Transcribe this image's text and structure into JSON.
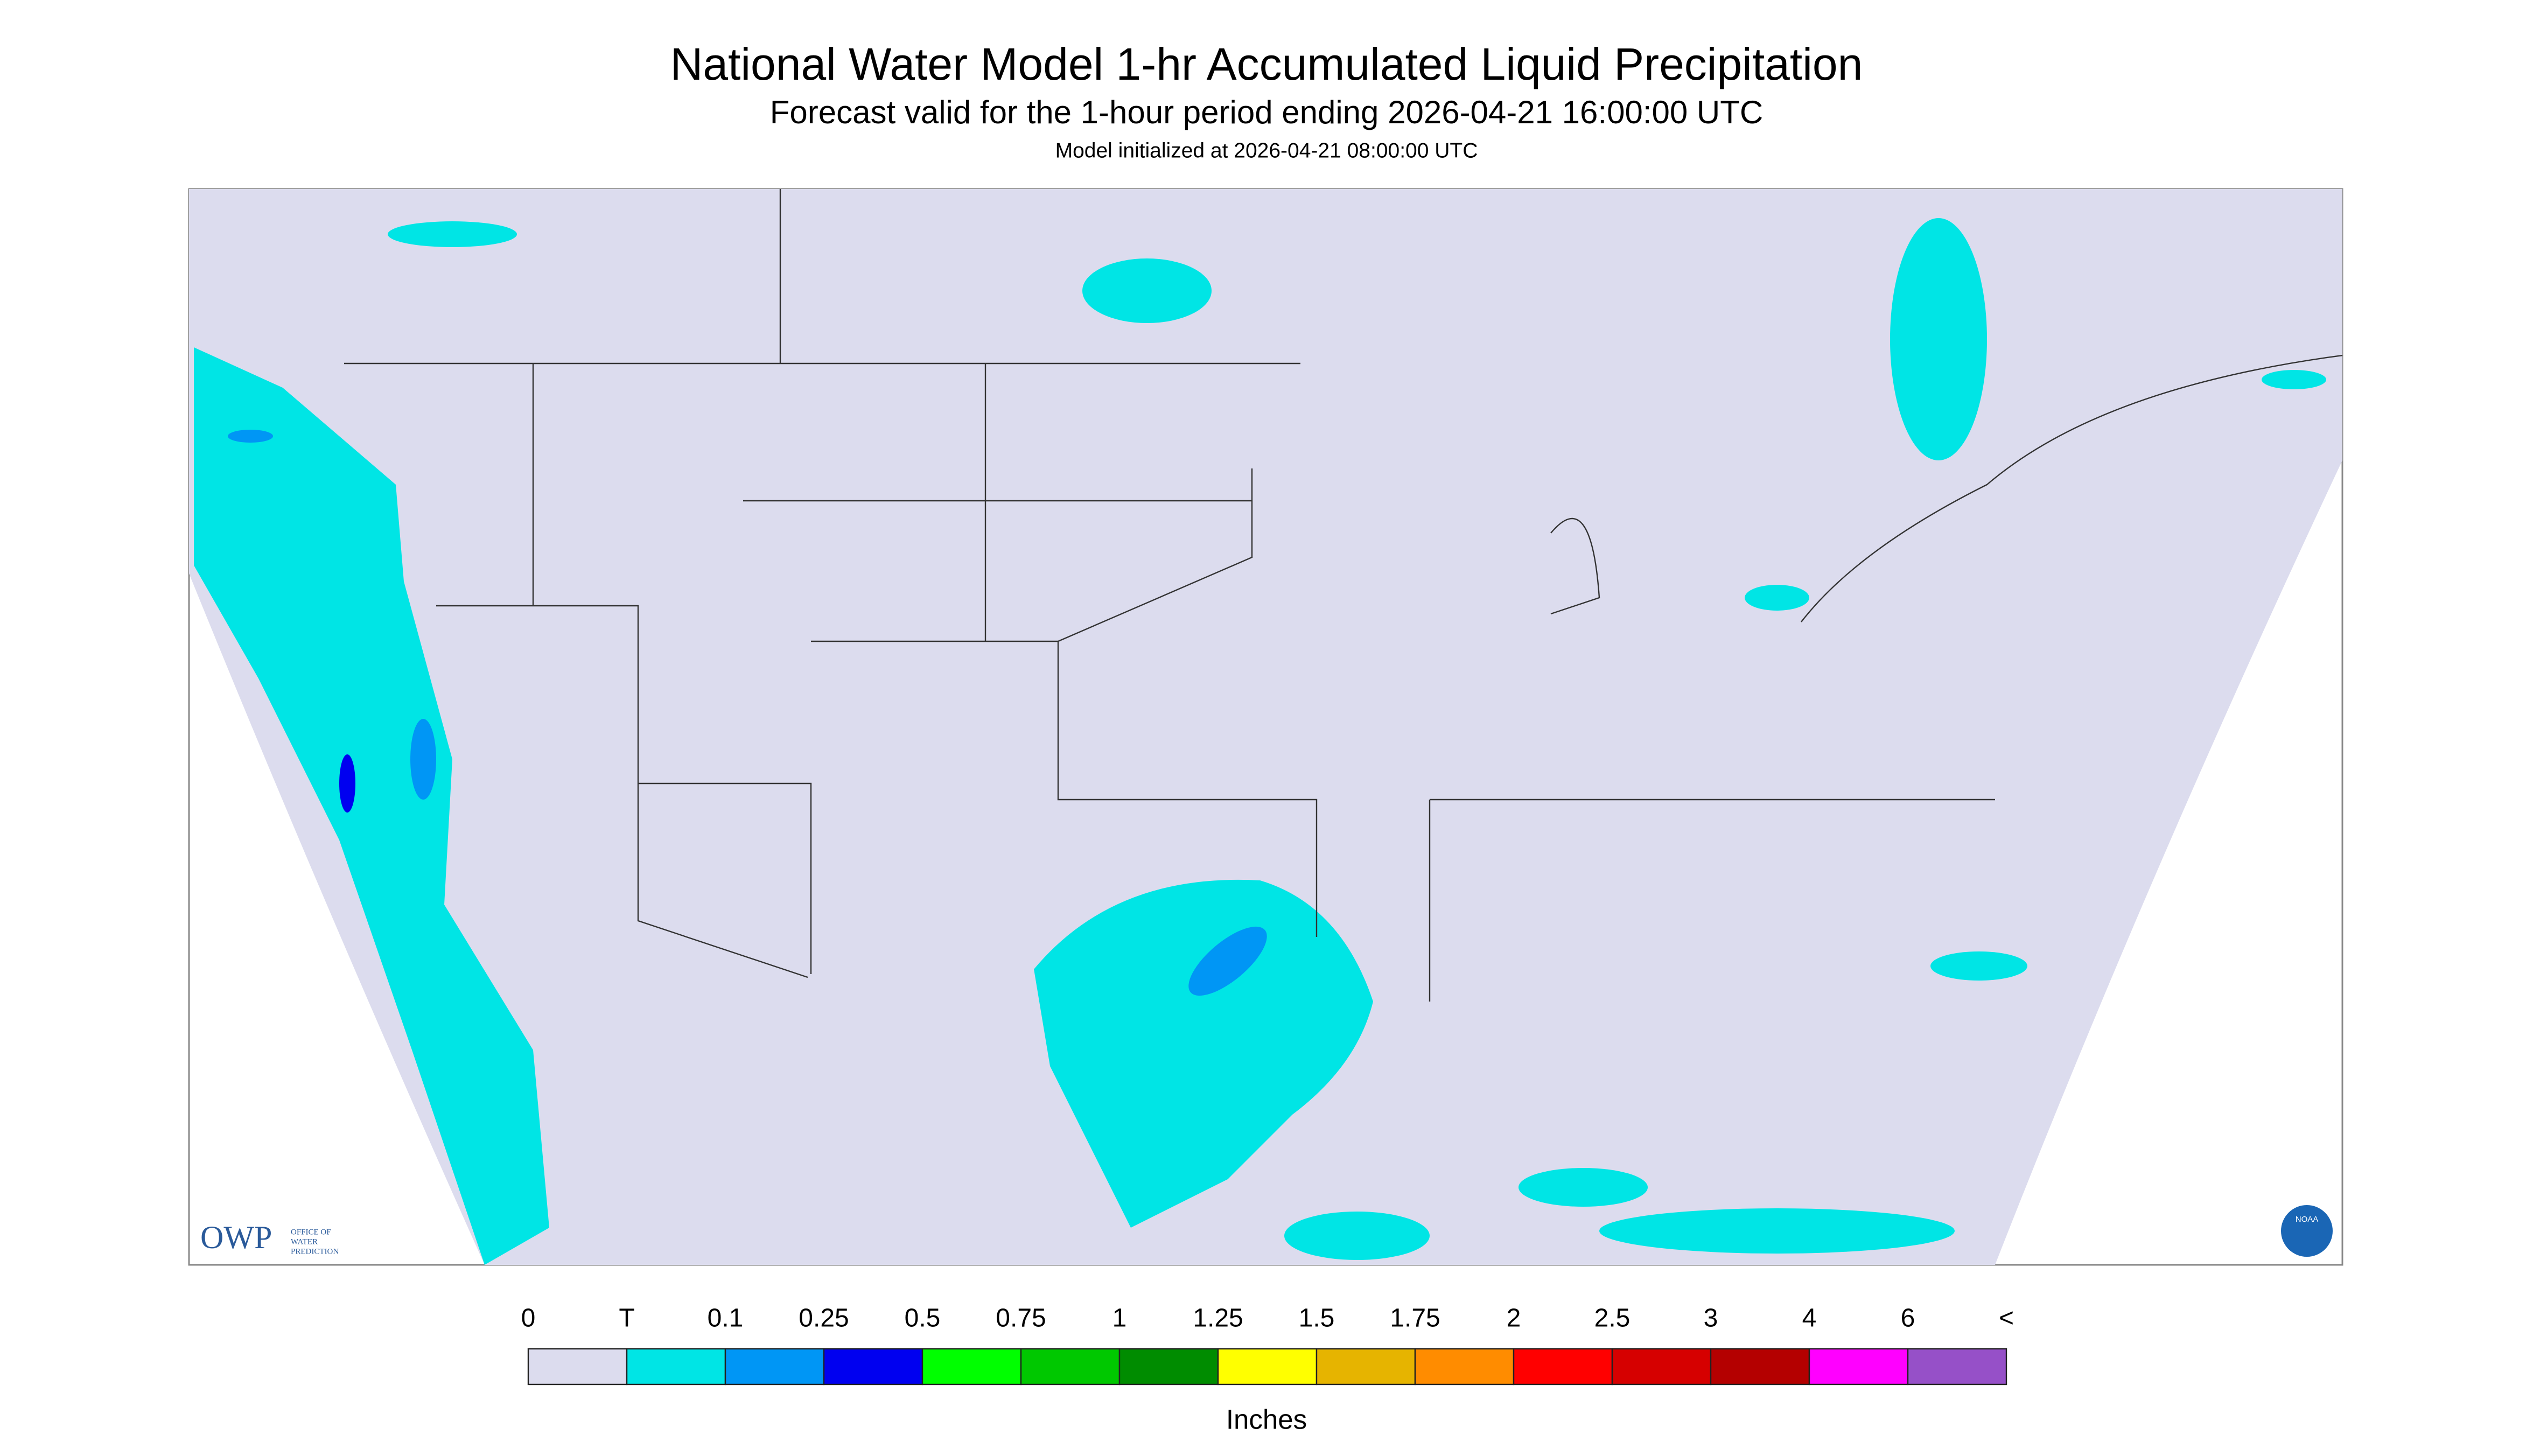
{
  "header": {
    "title": "National Water Model 1-hr Accumulated Liquid Precipitation",
    "subtitle": "Forecast valid for the 1-hour period ending 2026-04-21 16:00:00 UTC",
    "note": "Model initialized at 2026-04-21 08:00:00 UTC"
  },
  "legend": {
    "labels": [
      "0",
      "T",
      "0.1",
      "0.25",
      "0.5",
      "0.75",
      "1",
      "1.25",
      "1.5",
      "1.75",
      "2",
      "2.5",
      "3",
      "4",
      "6",
      "<"
    ],
    "colors": [
      "#dcdcee",
      "#00e5e5",
      "#0096f5",
      "#0000f0",
      "#00ff00",
      "#00c800",
      "#008c00",
      "#ffff00",
      "#e6b400",
      "#ff8c00",
      "#ff0000",
      "#d60000",
      "#b40000",
      "#ff00ff",
      "#9650c8"
    ],
    "unit": "Inches"
  },
  "logos": {
    "owp": "OWP",
    "owp_text": [
      "OFFICE OF",
      "WATER",
      "PREDICTION"
    ],
    "noaa": "NOAA"
  }
}
